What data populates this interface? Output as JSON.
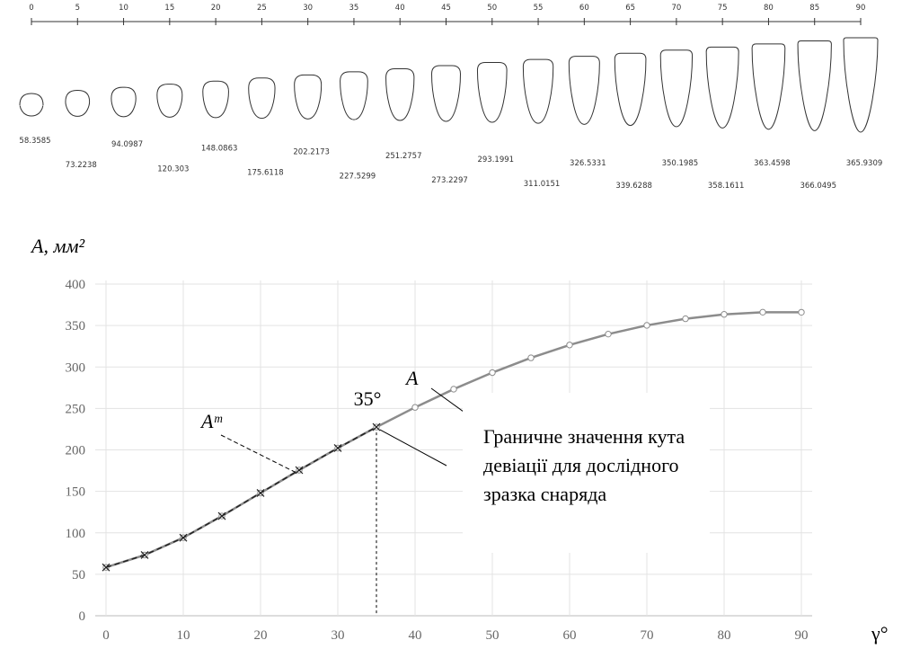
{
  "chart_data": [
    {
      "type": "shapes",
      "x": [
        0,
        5,
        10,
        15,
        20,
        25,
        30,
        35,
        40,
        45,
        50,
        55,
        60,
        65,
        70,
        75,
        80,
        85,
        90
      ],
      "values": [
        58.3585,
        73.2238,
        94.0987,
        120.303,
        148.0863,
        175.6118,
        202.2173,
        227.5299,
        251.2757,
        273.2297,
        293.1991,
        311.0151,
        326.5331,
        339.6288,
        350.1985,
        358.1611,
        363.4598,
        366.0495,
        365.9309
      ],
      "xlim": [
        0,
        90
      ],
      "xticks": [
        0,
        5,
        10,
        15,
        20,
        25,
        30,
        35,
        40,
        45,
        50,
        55,
        60,
        65,
        70,
        75,
        80,
        85,
        90
      ],
      "color": "#333333"
    },
    {
      "type": "line",
      "ylabel": "A, мм²",
      "xlabel": "γ°",
      "x": [
        0,
        5,
        10,
        15,
        20,
        25,
        30,
        35,
        40,
        45,
        50,
        55,
        60,
        65,
        70,
        75,
        80,
        85,
        90
      ],
      "series": [
        {
          "name": "A",
          "color": "#8c8c8c",
          "dash": false,
          "marker": "circle",
          "values": [
            58.3585,
            73.2238,
            94.0987,
            120.303,
            148.0863,
            175.6118,
            202.2173,
            227.5299,
            251.2757,
            273.2297,
            293.1991,
            311.0151,
            326.5331,
            339.6288,
            350.1985,
            358.1611,
            363.4598,
            366.0495,
            365.9309
          ]
        },
        {
          "name": "Aᵐ",
          "color": "#222222",
          "dash": true,
          "marker": "x",
          "values": [
            58.3585,
            73.2238,
            94.0987,
            120.303,
            148.0863,
            175.6118,
            202.2173,
            227.5299,
            null,
            null,
            null,
            null,
            null,
            null,
            null,
            null,
            null,
            null,
            null
          ]
        }
      ],
      "xlim": [
        0,
        90
      ],
      "xticks": [
        0,
        10,
        20,
        30,
        40,
        50,
        60,
        70,
        80,
        90
      ],
      "ylim": [
        0,
        400
      ],
      "yticks": [
        0,
        50,
        100,
        150,
        200,
        250,
        300,
        350,
        400
      ],
      "grid": true,
      "annotations": [
        {
          "text": "35°",
          "x": 35
        },
        {
          "lines": [
            "Граничне значення кута",
            "девіації для дослідного",
            "зразка снаряда"
          ]
        }
      ]
    }
  ]
}
